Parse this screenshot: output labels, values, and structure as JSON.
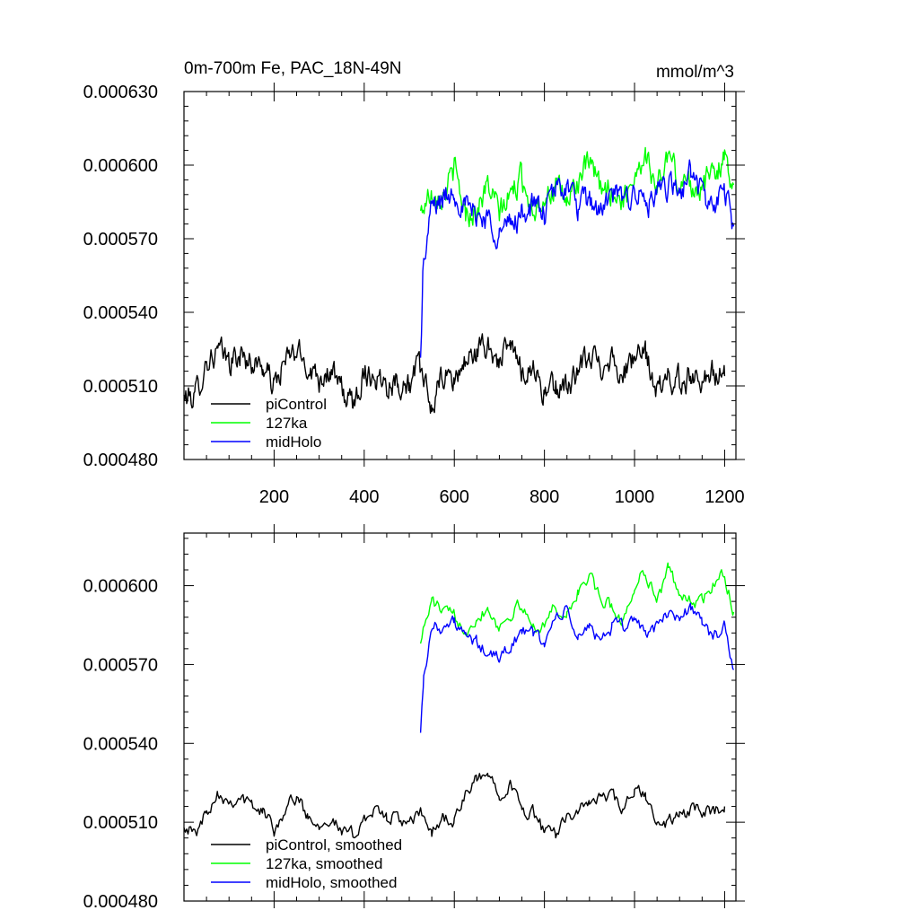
{
  "chart_data": [
    {
      "type": "line",
      "title": "0m-700m Fe, PAC_18N-49N",
      "units": "mmol/m^3",
      "xlabel": "",
      "ylabel": "",
      "xlim": [
        0,
        1225
      ],
      "ylim": [
        0.00048,
        0.00063
      ],
      "xticks": [
        200,
        400,
        600,
        800,
        1000,
        1200
      ],
      "xtick_labels": [
        "200",
        "400",
        "600",
        "800",
        "1000",
        "1200"
      ],
      "yticks": [
        0.00048,
        0.00051,
        0.00054,
        0.00057,
        0.0006,
        0.00063
      ],
      "ytick_labels": [
        "0.000480",
        "0.000510",
        "0.000540",
        "0.000570",
        "0.000600",
        "0.000630"
      ],
      "grid": false,
      "legend_position": "bottom-left",
      "series": [
        {
          "name": "piControl",
          "color": "#000000",
          "x": [
            0,
            25,
            50,
            75,
            100,
            125,
            150,
            175,
            200,
            225,
            250,
            275,
            300,
            325,
            350,
            375,
            400,
            425,
            450,
            475,
            500,
            522,
            535,
            550,
            575,
            600,
            625,
            650,
            675,
            700,
            725,
            750,
            775,
            800,
            825,
            850,
            875,
            900,
            925,
            950,
            975,
            1000,
            1025,
            1050,
            1075,
            1100,
            1125,
            1150,
            1175,
            1200
          ],
          "values": [
            0.000505,
            0.000506,
            0.00052,
            0.000524,
            0.00052,
            0.000522,
            0.00052,
            0.000518,
            0.00051,
            0.00052,
            0.000524,
            0.000518,
            0.000514,
            0.000516,
            0.000508,
            0.000502,
            0.000516,
            0.000514,
            0.000512,
            0.000512,
            0.00051,
            0.000518,
            0.000509,
            0.000501,
            0.000514,
            0.000512,
            0.00052,
            0.000524,
            0.000526,
            0.00052,
            0.000526,
            0.000516,
            0.000518,
            0.000507,
            0.000509,
            0.00051,
            0.000515,
            0.000522,
            0.000519,
            0.000522,
            0.000514,
            0.000522,
            0.000522,
            0.000508,
            0.000513,
            0.000512,
            0.000514,
            0.000514,
            0.000515,
            0.000514
          ]
        },
        {
          "name": "127ka",
          "color": "#00ff00",
          "x": [
            525,
            535,
            550,
            575,
            600,
            625,
            650,
            675,
            700,
            725,
            750,
            775,
            800,
            825,
            850,
            875,
            900,
            925,
            950,
            975,
            1000,
            1025,
            1050,
            1075,
            1100,
            1125,
            1150,
            1175,
            1200,
            1220
          ],
          "values": [
            0.00058,
            0.000585,
            0.00059,
            0.000588,
            0.000598,
            0.00058,
            0.000582,
            0.000592,
            0.00058,
            0.000588,
            0.000595,
            0.000582,
            0.000588,
            0.00059,
            0.000585,
            0.000594,
            0.0006,
            0.00059,
            0.00059,
            0.000585,
            0.000597,
            0.000605,
            0.00059,
            0.000605,
            0.000592,
            0.000593,
            0.00059,
            0.000598,
            0.000602,
            0.000592
          ]
        },
        {
          "name": "midHolo",
          "color": "#0000ff",
          "x": [
            525,
            530,
            540,
            550,
            575,
            600,
            625,
            650,
            675,
            700,
            725,
            750,
            775,
            800,
            825,
            850,
            875,
            900,
            925,
            950,
            975,
            1000,
            1025,
            1050,
            1075,
            1100,
            1125,
            1150,
            1175,
            1200,
            1220
          ],
          "values": [
            0.00052,
            0.000555,
            0.00057,
            0.000583,
            0.000586,
            0.00059,
            0.000582,
            0.00058,
            0.000578,
            0.000572,
            0.000576,
            0.00058,
            0.000584,
            0.00058,
            0.00059,
            0.000592,
            0.000582,
            0.000586,
            0.00058,
            0.000588,
            0.000585,
            0.00059,
            0.000584,
            0.000586,
            0.000592,
            0.000588,
            0.000598,
            0.000588,
            0.000582,
            0.00059,
            0.000575
          ]
        }
      ]
    },
    {
      "type": "line",
      "title": "",
      "xlabel": "",
      "ylabel": "",
      "xlim": [
        0,
        1225
      ],
      "ylim": [
        0.00048,
        0.00062
      ],
      "xticks": [
        200,
        400,
        600,
        800,
        1000,
        1200
      ],
      "xtick_labels": [],
      "yticks": [
        0.00048,
        0.00051,
        0.00054,
        0.00057,
        0.0006
      ],
      "ytick_labels": [
        "0.000480",
        "0.000510",
        "0.000540",
        "0.000570",
        "0.000600"
      ],
      "grid": false,
      "legend_position": "bottom-left",
      "series": [
        {
          "name": "piControl, smoothed",
          "color": "#000000",
          "x": [
            0,
            25,
            50,
            75,
            100,
            125,
            150,
            175,
            200,
            225,
            250,
            275,
            300,
            325,
            350,
            375,
            400,
            425,
            450,
            475,
            500,
            525,
            550,
            575,
            600,
            625,
            650,
            675,
            700,
            725,
            750,
            775,
            800,
            825,
            850,
            875,
            900,
            925,
            950,
            975,
            1000,
            1025,
            1050,
            1075,
            1100,
            1125,
            1150,
            1175,
            1200
          ],
          "values": [
            0.00051,
            0.000505,
            0.000514,
            0.000522,
            0.000518,
            0.00052,
            0.000516,
            0.000514,
            0.000508,
            0.000515,
            0.00052,
            0.000512,
            0.00051,
            0.000512,
            0.000506,
            0.000505,
            0.000512,
            0.000514,
            0.000512,
            0.000512,
            0.000508,
            0.000514,
            0.000506,
            0.000512,
            0.00051,
            0.00052,
            0.000526,
            0.000528,
            0.000522,
            0.000525,
            0.000514,
            0.000514,
            0.000506,
            0.000505,
            0.000514,
            0.000513,
            0.000518,
            0.000519,
            0.00052,
            0.000514,
            0.000522,
            0.00052,
            0.000508,
            0.00051,
            0.000513,
            0.000514,
            0.000515,
            0.000514,
            0.000516
          ]
        },
        {
          "name": "127ka, smoothed",
          "color": "#00ff00",
          "x": [
            525,
            540,
            550,
            575,
            600,
            625,
            650,
            675,
            700,
            725,
            750,
            775,
            800,
            825,
            850,
            875,
            900,
            925,
            950,
            975,
            1000,
            1025,
            1050,
            1075,
            1100,
            1125,
            1150,
            1175,
            1200,
            1220
          ],
          "values": [
            0.00058,
            0.000588,
            0.000594,
            0.00059,
            0.000588,
            0.000584,
            0.000588,
            0.000592,
            0.000584,
            0.00059,
            0.000592,
            0.000584,
            0.000586,
            0.000592,
            0.000588,
            0.000598,
            0.000604,
            0.000594,
            0.000592,
            0.000586,
            0.0006,
            0.000606,
            0.000594,
            0.000606,
            0.000598,
            0.000594,
            0.000594,
            0.0006,
            0.000604,
            0.00059
          ]
        },
        {
          "name": "midHolo, smoothed",
          "color": "#0000ff",
          "x": [
            525,
            532,
            545,
            560,
            575,
            600,
            625,
            650,
            675,
            700,
            725,
            750,
            775,
            800,
            825,
            850,
            875,
            900,
            925,
            950,
            975,
            1000,
            1025,
            1050,
            1075,
            1100,
            1125,
            1150,
            1175,
            1200,
            1220
          ],
          "values": [
            0.000546,
            0.000565,
            0.00058,
            0.000586,
            0.000584,
            0.000586,
            0.00058,
            0.000578,
            0.000574,
            0.000572,
            0.000578,
            0.000582,
            0.000582,
            0.000578,
            0.000588,
            0.00059,
            0.00058,
            0.000584,
            0.00058,
            0.000584,
            0.000584,
            0.000588,
            0.000582,
            0.000584,
            0.00059,
            0.000588,
            0.000592,
            0.000586,
            0.00058,
            0.000584,
            0.000568
          ]
        }
      ]
    }
  ]
}
